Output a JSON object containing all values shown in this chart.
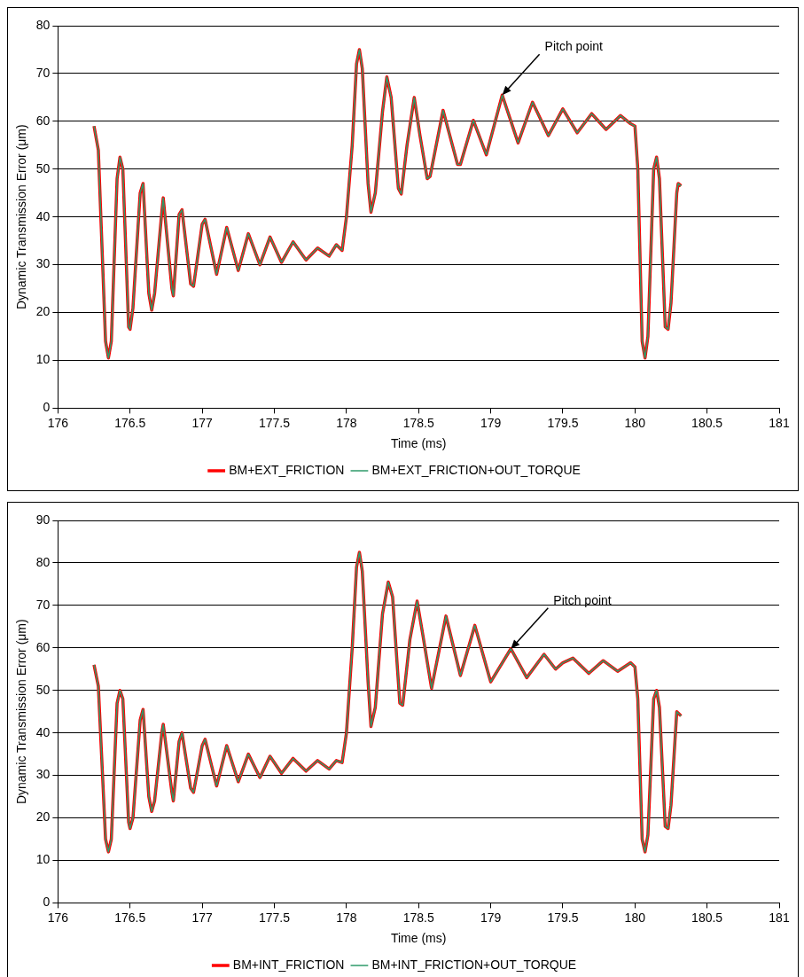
{
  "chart_data": [
    {
      "type": "line",
      "xlabel": "Time (ms)",
      "ylabel": "Dynamic Transmission Error (μm)",
      "xlim": [
        176,
        181
      ],
      "xticks": [
        176,
        176.5,
        177,
        177.5,
        178,
        178.5,
        179,
        179.5,
        180,
        180.5,
        181
      ],
      "ylim": [
        0,
        80
      ],
      "yticks": [
        0,
        10,
        20,
        30,
        40,
        50,
        60,
        70,
        80
      ],
      "grid": "y",
      "legend": "bottom",
      "annotations": [
        {
          "text": "Pitch point",
          "x": 179.08,
          "y": 65.5
        }
      ],
      "x": [
        176.25,
        176.28,
        176.33,
        176.35,
        176.37,
        176.41,
        176.43,
        176.45,
        176.49,
        176.5,
        176.52,
        176.57,
        176.59,
        176.63,
        176.65,
        176.67,
        176.72,
        176.73,
        176.79,
        176.8,
        176.84,
        176.86,
        176.92,
        176.94,
        177.0,
        177.02,
        177.1,
        177.17,
        177.25,
        177.32,
        177.4,
        177.47,
        177.55,
        177.63,
        177.72,
        177.8,
        177.88,
        177.93,
        177.97,
        178.0,
        178.04,
        178.07,
        178.09,
        178.11,
        178.15,
        178.17,
        178.2,
        178.25,
        178.28,
        178.31,
        178.36,
        178.38,
        178.42,
        178.47,
        178.51,
        178.56,
        178.58,
        178.67,
        178.77,
        178.79,
        178.88,
        178.97,
        179.08,
        179.19,
        179.29,
        179.4,
        179.5,
        179.6,
        179.7,
        179.8,
        179.9,
        179.97,
        180.0,
        180.02,
        180.05,
        180.07,
        180.09,
        180.13,
        180.15,
        180.17,
        180.21,
        180.23,
        180.25,
        180.29,
        180.3,
        180.32
      ],
      "series": [
        {
          "name": "BM+EXT_FRICTION",
          "color": "#ff0000",
          "values": [
            59,
            54,
            14,
            10.5,
            14,
            48,
            52.5,
            50,
            17,
            16.5,
            21,
            45,
            47,
            24,
            20.5,
            24,
            41,
            44,
            25,
            23.5,
            40.5,
            41.5,
            26,
            25.5,
            38.5,
            39.5,
            28,
            37.8,
            28.8,
            36.5,
            30,
            35.8,
            30.5,
            34.8,
            31,
            33.5,
            31.8,
            34.2,
            33,
            40,
            55,
            72,
            75,
            71,
            47,
            41,
            45,
            62,
            69.3,
            65,
            46,
            44.8,
            55,
            65,
            57,
            48,
            48.5,
            62.3,
            51,
            51,
            60.2,
            53,
            65.5,
            55.5,
            64,
            57,
            62.6,
            57.6,
            61.6,
            58.3,
            61.2,
            59.5,
            59,
            50,
            14,
            10.5,
            15,
            50,
            52.5,
            48,
            17,
            16.5,
            22,
            45,
            47,
            46.5
          ]
        },
        {
          "name": "BM+EXT_FRICTION+OUT_TORQUE",
          "color": "#2e9a6a",
          "values": [
            59,
            54,
            14,
            10.5,
            14,
            48,
            52.5,
            50,
            17,
            16.5,
            21,
            45,
            47,
            24,
            20.5,
            24,
            41,
            44,
            25,
            23.5,
            40.5,
            41.5,
            26,
            25.5,
            38.5,
            39.5,
            28,
            37.8,
            28.8,
            36.5,
            30,
            35.8,
            30.5,
            34.8,
            31,
            33.5,
            31.8,
            34.2,
            33,
            40,
            55,
            72,
            75,
            71,
            47,
            41,
            45,
            62,
            69.3,
            65,
            46,
            44.8,
            55,
            65,
            57,
            48,
            48.5,
            62.3,
            51,
            51,
            60.2,
            53,
            65.5,
            55.5,
            64,
            57,
            62.6,
            57.6,
            61.6,
            58.3,
            61.2,
            59.5,
            59,
            50,
            14,
            10.5,
            15,
            50,
            52.5,
            48,
            17,
            16.5,
            22,
            45,
            47,
            46.5
          ]
        }
      ]
    },
    {
      "type": "line",
      "xlabel": "Time (ms)",
      "ylabel": "Dynamic Transmission Error (μm)",
      "xlim": [
        176,
        181
      ],
      "xticks": [
        176,
        176.5,
        177,
        177.5,
        178,
        178.5,
        179,
        179.5,
        180,
        180.5,
        181
      ],
      "ylim": [
        0,
        90
      ],
      "yticks": [
        0,
        10,
        20,
        30,
        40,
        50,
        60,
        70,
        80,
        90
      ],
      "grid": "y",
      "legend": "bottom",
      "annotations": [
        {
          "text": "Pitch point",
          "x": 179.14,
          "y": 59.8
        }
      ],
      "x": [
        176.25,
        176.28,
        176.33,
        176.35,
        176.37,
        176.41,
        176.43,
        176.45,
        176.49,
        176.5,
        176.52,
        176.57,
        176.59,
        176.63,
        176.65,
        176.67,
        176.72,
        176.73,
        176.79,
        176.8,
        176.84,
        176.86,
        176.92,
        176.94,
        177.0,
        177.02,
        177.1,
        177.17,
        177.25,
        177.32,
        177.4,
        177.47,
        177.55,
        177.63,
        177.72,
        177.8,
        177.88,
        177.93,
        177.97,
        178.0,
        178.04,
        178.07,
        178.09,
        178.11,
        178.15,
        178.17,
        178.2,
        178.25,
        178.29,
        178.32,
        178.37,
        178.39,
        178.44,
        178.49,
        178.53,
        178.59,
        178.69,
        178.79,
        178.89,
        179.0,
        179.14,
        179.25,
        179.37,
        179.45,
        179.5,
        179.57,
        179.68,
        179.78,
        179.88,
        179.97,
        180.0,
        180.02,
        180.05,
        180.07,
        180.09,
        180.13,
        180.15,
        180.17,
        180.21,
        180.23,
        180.25,
        180.29,
        180.32
      ],
      "series": [
        {
          "name": "BM+INT_FRICTION",
          "color": "#ff0000",
          "values": [
            56,
            51,
            15,
            12,
            15,
            47,
            50,
            48,
            19,
            17.5,
            20,
            43,
            45.5,
            25,
            21.5,
            24,
            40,
            42,
            26,
            24,
            38,
            40,
            27,
            26,
            37,
            38.5,
            27.5,
            37,
            28.5,
            35,
            29.5,
            34.5,
            30.5,
            34,
            31,
            33.5,
            31.5,
            33.5,
            33,
            40,
            60,
            79,
            82.5,
            78,
            52,
            41.5,
            46,
            68,
            75.5,
            72,
            47,
            46.5,
            62,
            71,
            63,
            50.5,
            67.5,
            53.5,
            65.3,
            52,
            59.8,
            53,
            58.5,
            55,
            56.5,
            57.6,
            54,
            57,
            54.5,
            56.5,
            55.5,
            48,
            15,
            12,
            16,
            48,
            50,
            46,
            18,
            17.5,
            23,
            45,
            44
          ]
        },
        {
          "name": "BM+INT_FRICTION+OUT_TORQUE",
          "color": "#2e9a6a",
          "values": [
            56,
            51,
            15,
            12,
            15,
            47,
            50,
            48,
            19,
            17.5,
            20,
            43,
            45.5,
            25,
            21.5,
            24,
            40,
            42,
            26,
            24,
            38,
            40,
            27,
            26,
            37,
            38.5,
            27.5,
            37,
            28.5,
            35,
            29.5,
            34.5,
            30.5,
            34,
            31,
            33.5,
            31.5,
            33.5,
            33,
            40,
            60,
            79,
            82.5,
            78,
            52,
            41.5,
            46,
            68,
            75.5,
            72,
            47,
            46.5,
            62,
            71,
            63,
            50.5,
            67.5,
            53.5,
            65.3,
            52,
            59.8,
            53,
            58.5,
            55,
            56.5,
            57.6,
            54,
            57,
            54.5,
            56.5,
            55.5,
            48,
            15,
            12,
            16,
            48,
            50,
            46,
            18,
            17.5,
            23,
            45,
            44
          ]
        }
      ]
    }
  ]
}
